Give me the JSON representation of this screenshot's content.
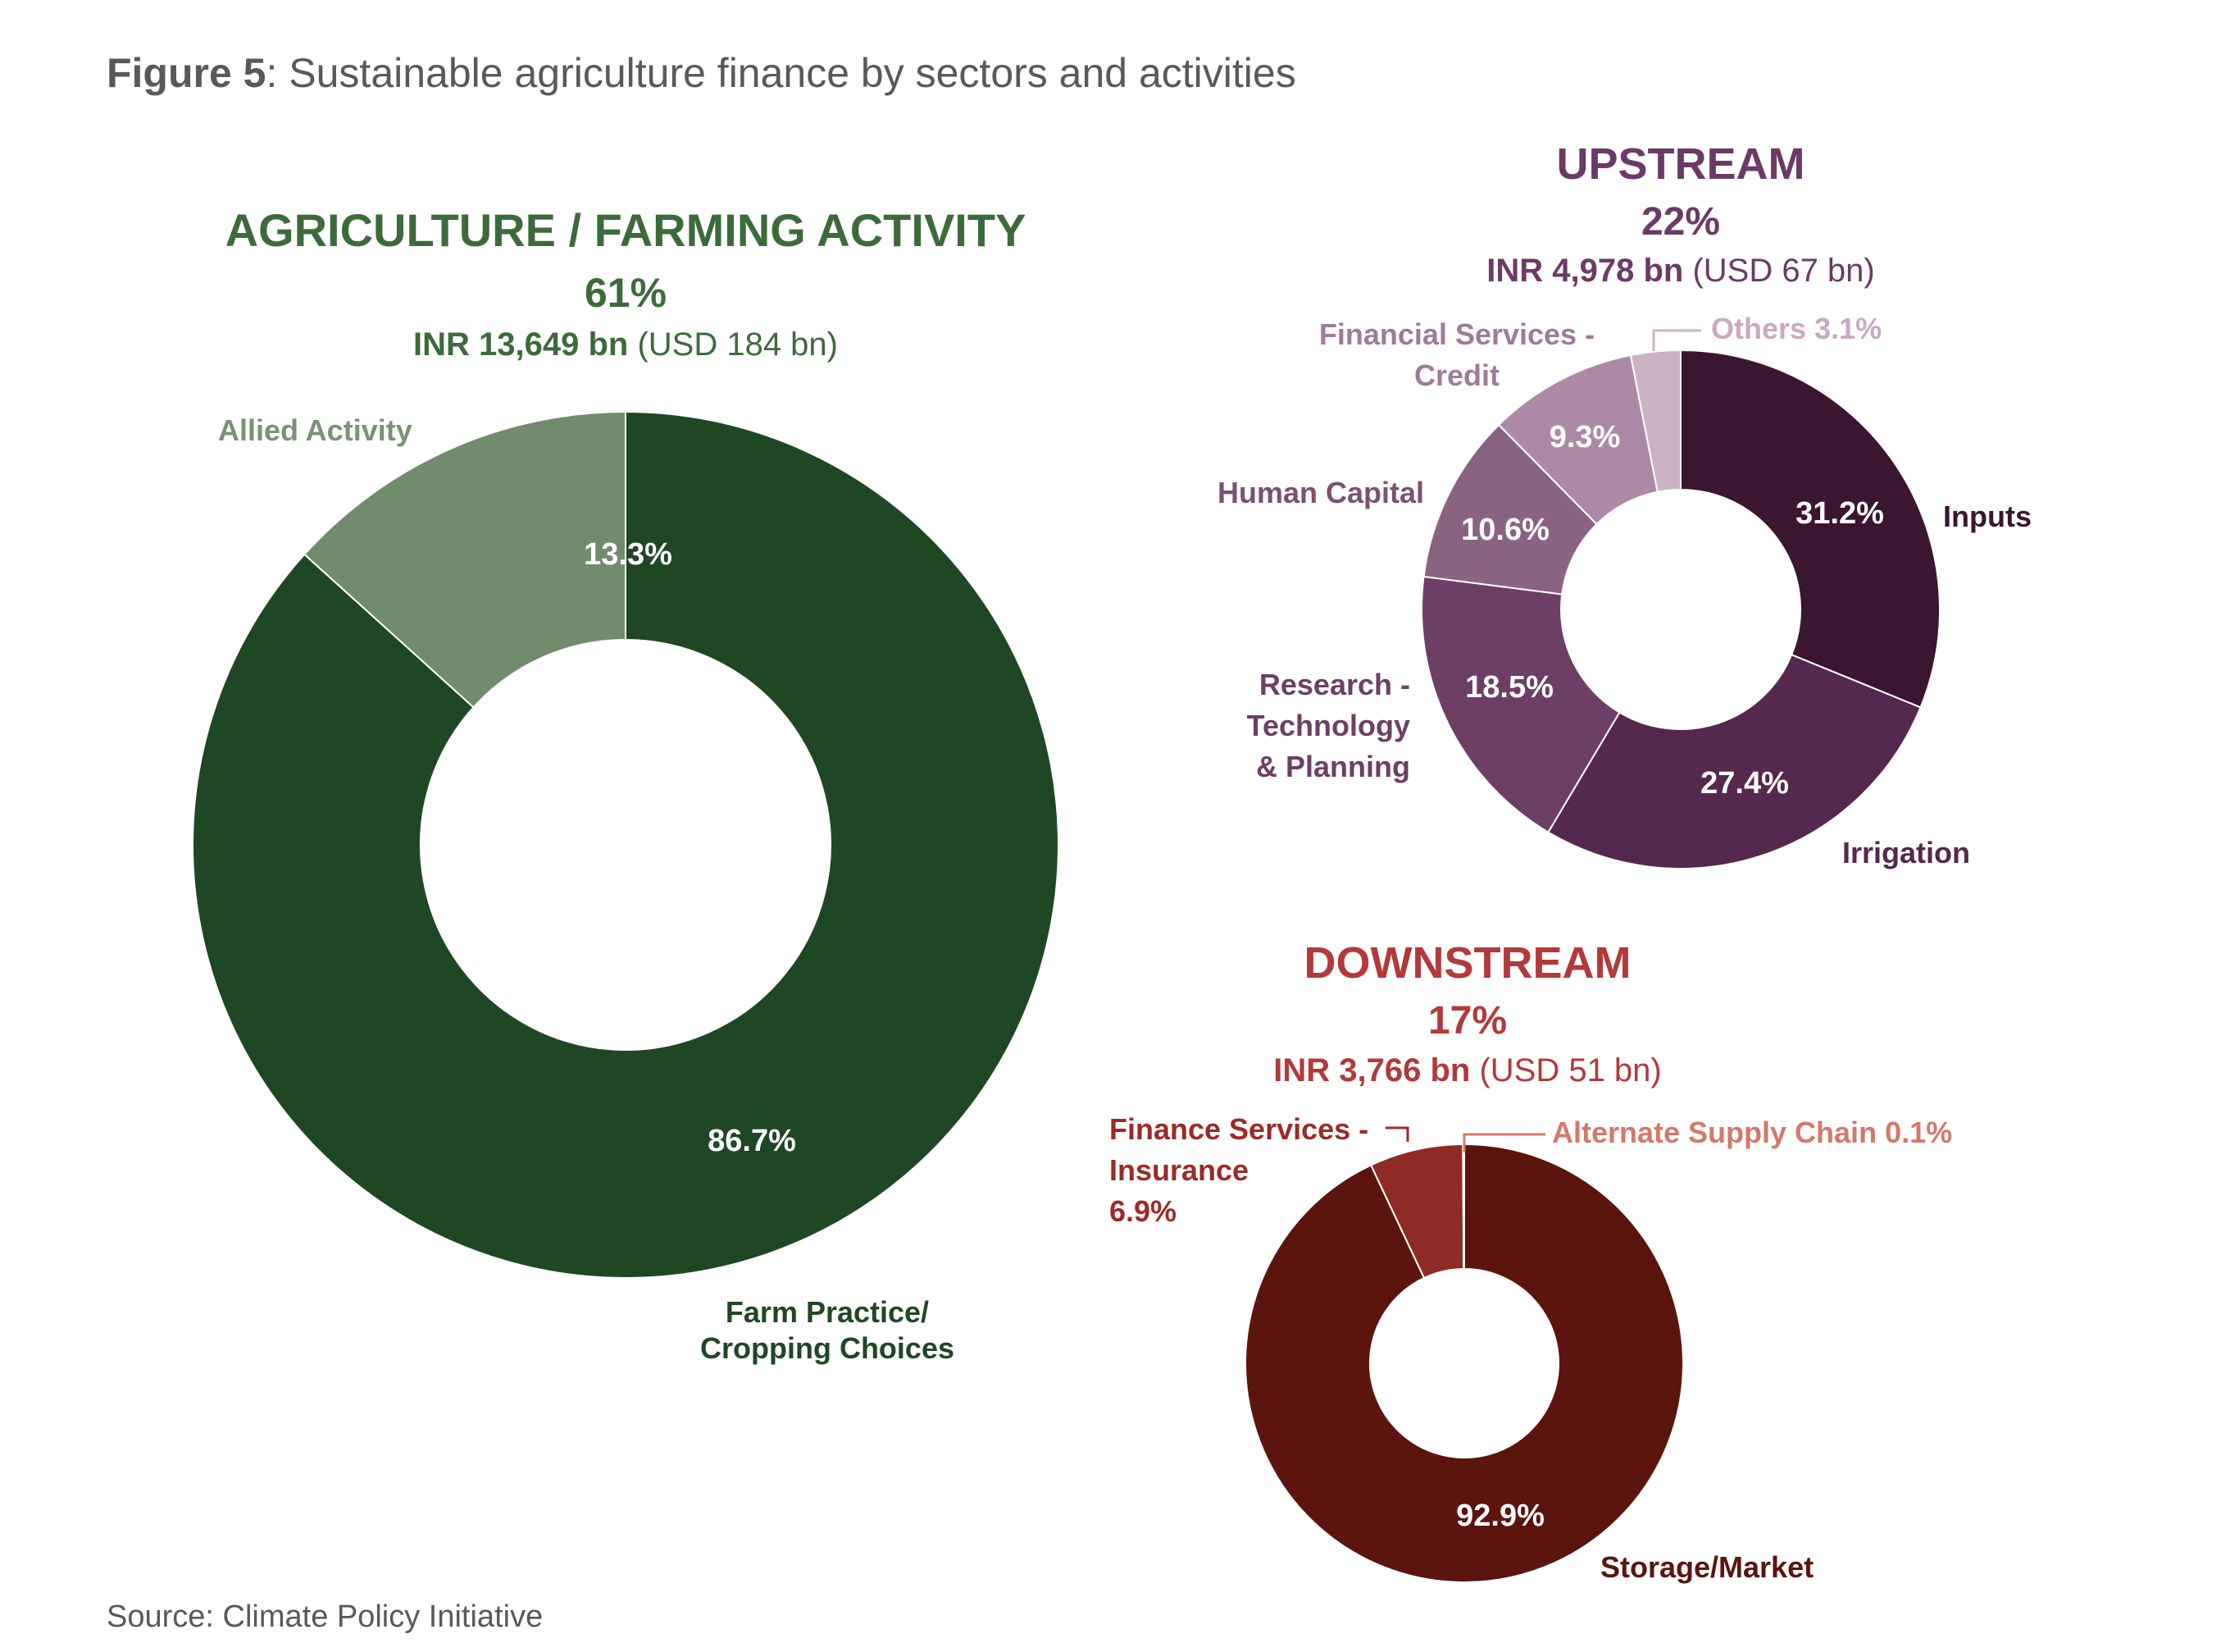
{
  "figure": {
    "title_bold": "Figure 5",
    "title_rest": ": Sustainable agriculture finance by sectors and activities",
    "source": "Source: Climate Policy Initiative"
  },
  "colors": {
    "title_gray": "#58595b",
    "agri_title": "#3c6b3a",
    "agri_main": "#1f4723",
    "agri_allied": "#718c6c",
    "agri_allied_label": "#7a9276",
    "up_title": "#6b3a67",
    "up_inputs": "#3a1630",
    "up_irrigation": "#55284d",
    "up_research": "#6e3f64",
    "up_human": "#8a6383",
    "up_financial": "#ac8aa6",
    "up_others": "#cbb3c6",
    "up_label_dark": "#3a1630",
    "up_label_mid": "#6e3f64",
    "up_label_light": "#9f7b99",
    "up_label_lightest": "#c9a9c2",
    "down_title": "#b3393a",
    "down_storage": "#5b150e",
    "down_insurance": "#8e2b27",
    "down_alt": "#d06c5e",
    "down_label_dark": "#5b150e",
    "down_label_mid": "#9c2a28",
    "down_label_light": "#d4786b"
  },
  "chart_data": [
    {
      "type": "pie",
      "title": "AGRICULTURE / FARMING ACTIVITY",
      "share": "61%",
      "amount_bold": "INR 13,649 bn",
      "amount_rest": "(USD 184 bn)",
      "slices": [
        {
          "label": "Allied Activity",
          "value": 13.3,
          "value_label": "13.3%",
          "color": "#718c6c"
        },
        {
          "label": "Farm Practice/ Cropping Choices",
          "value": 86.7,
          "value_label": "86.7%",
          "color": "#1f4723"
        }
      ]
    },
    {
      "type": "pie",
      "title": "UPSTREAM",
      "share": "22%",
      "amount_bold": "INR 4,978 bn",
      "amount_rest": "(USD 67 bn)",
      "slices": [
        {
          "label": "Inputs",
          "value": 31.2,
          "value_label": "31.2%",
          "color": "#3a1630"
        },
        {
          "label": "Irrigation",
          "value": 27.4,
          "value_label": "27.4%",
          "color": "#55284d"
        },
        {
          "label": "Research - Technology & Planning",
          "value": 18.5,
          "value_label": "18.5%",
          "color": "#6e3f64"
        },
        {
          "label": "Human Capital",
          "value": 10.6,
          "value_label": "10.6%",
          "color": "#8a6383"
        },
        {
          "label": "Financial Services - Credit",
          "value": 9.3,
          "value_label": "9.3%",
          "color": "#ac8aa6"
        },
        {
          "label": "Others",
          "value": 3.1,
          "value_label": "3.1%",
          "color": "#cbb3c6"
        }
      ]
    },
    {
      "type": "pie",
      "title": "DOWNSTREAM",
      "share": "17%",
      "amount_bold": "INR 3,766 bn",
      "amount_rest": "(USD 51 bn)",
      "slices": [
        {
          "label": "Storage/Market",
          "value": 92.9,
          "value_label": "92.9%",
          "color": "#5b150e"
        },
        {
          "label": "Finance Services - Insurance",
          "value": 6.9,
          "value_label": "6.9%",
          "color": "#8e2b27"
        },
        {
          "label": "Alternate Supply Chain",
          "value": 0.1,
          "value_label": "0.1%",
          "color": "#d06c5e"
        }
      ]
    }
  ]
}
